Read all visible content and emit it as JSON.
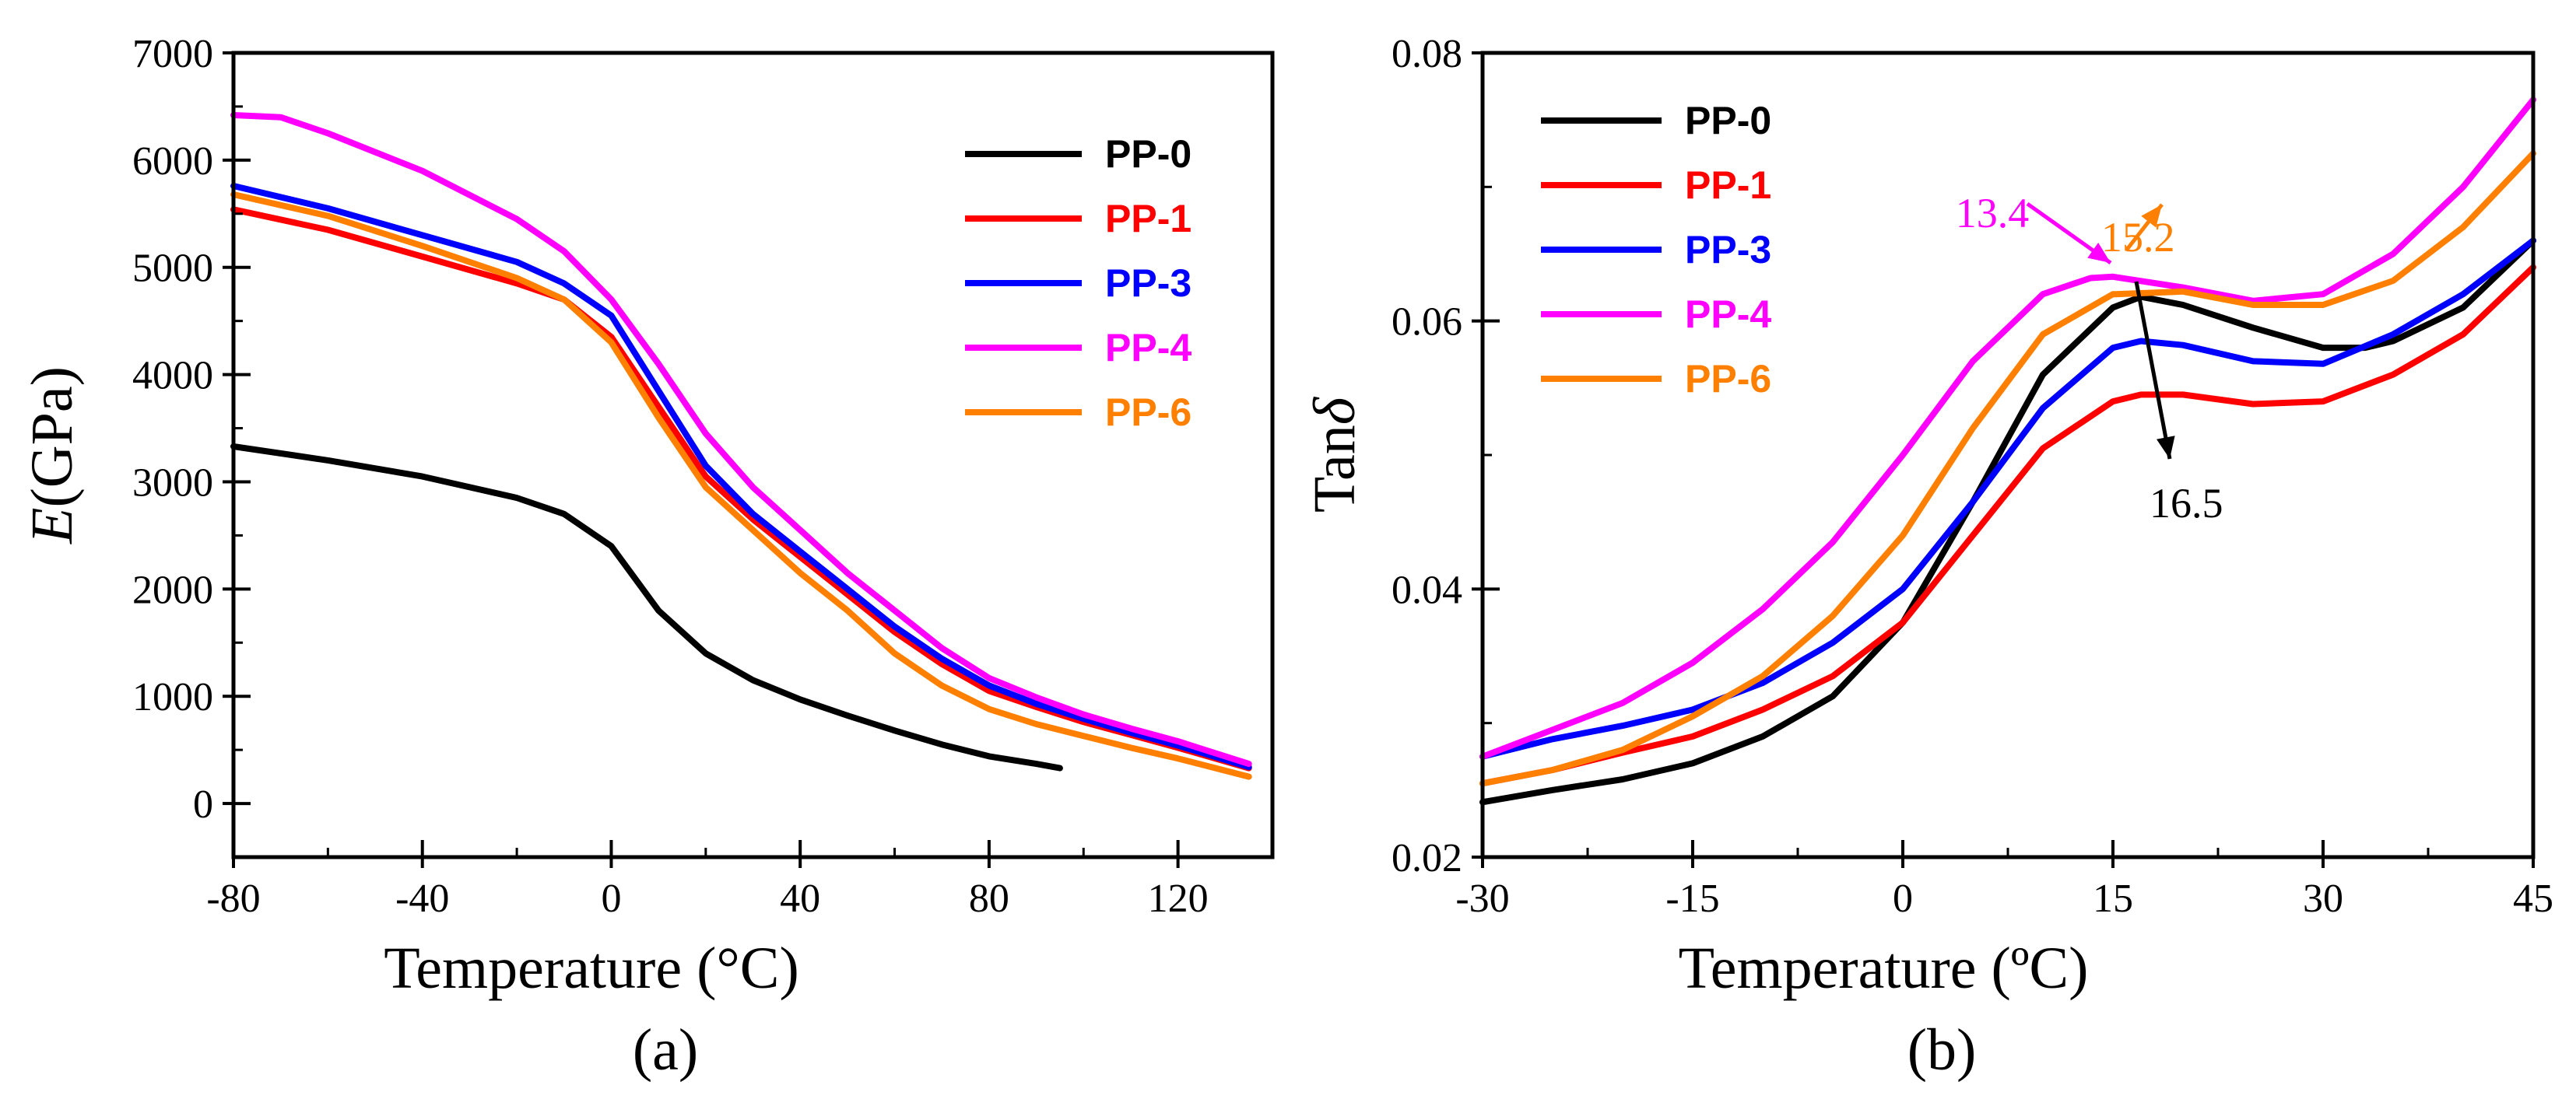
{
  "chart_data": [
    {
      "type": "line",
      "panel_label": "(a)",
      "xlabel": "Temperature (°C)",
      "ylabel_italic": "E",
      "ylabel_unit": "(GPa)",
      "xlim": [
        -80,
        140
      ],
      "ylim": [
        -500,
        7000
      ],
      "xticks": [
        -80,
        -40,
        0,
        40,
        80,
        120
      ],
      "yticks": [
        0,
        1000,
        2000,
        3000,
        4000,
        5000,
        6000,
        7000
      ],
      "legend_position": "top-right",
      "grid": false,
      "series": [
        {
          "name": "PP-0",
          "color": "#000000",
          "x": [
            -80,
            -60,
            -40,
            -20,
            -10,
            0,
            5,
            10,
            20,
            30,
            40,
            50,
            60,
            70,
            80,
            90,
            95
          ],
          "y": [
            3330,
            3200,
            3050,
            2850,
            2700,
            2400,
            2100,
            1800,
            1400,
            1150,
            970,
            820,
            680,
            550,
            440,
            370,
            330
          ]
        },
        {
          "name": "PP-1",
          "color": "#ff0000",
          "x": [
            -80,
            -60,
            -40,
            -20,
            -10,
            0,
            10,
            20,
            30,
            40,
            50,
            60,
            70,
            80,
            90,
            100,
            110,
            120,
            135
          ],
          "y": [
            5540,
            5350,
            5100,
            4850,
            4700,
            4350,
            3700,
            3050,
            2650,
            2300,
            1950,
            1600,
            1300,
            1050,
            900,
            760,
            640,
            520,
            330
          ]
        },
        {
          "name": "PP-3",
          "color": "#0000ff",
          "x": [
            -80,
            -60,
            -40,
            -20,
            -10,
            0,
            10,
            20,
            30,
            40,
            50,
            60,
            70,
            80,
            90,
            100,
            110,
            120,
            135
          ],
          "y": [
            5760,
            5550,
            5300,
            5050,
            4850,
            4550,
            3850,
            3150,
            2700,
            2350,
            2000,
            1650,
            1350,
            1100,
            930,
            790,
            660,
            540,
            340
          ]
        },
        {
          "name": "PP-4",
          "color": "#ff00ff",
          "x": [
            -80,
            -70,
            -60,
            -40,
            -20,
            -10,
            0,
            10,
            20,
            30,
            40,
            50,
            60,
            70,
            80,
            90,
            100,
            110,
            120,
            135
          ],
          "y": [
            6420,
            6400,
            6250,
            5900,
            5450,
            5150,
            4700,
            4100,
            3450,
            2950,
            2550,
            2150,
            1800,
            1450,
            1170,
            990,
            830,
            700,
            580,
            370
          ]
        },
        {
          "name": "PP-6",
          "color": "#ff8000",
          "x": [
            -80,
            -60,
            -40,
            -20,
            -10,
            0,
            10,
            20,
            30,
            40,
            50,
            60,
            70,
            80,
            90,
            100,
            110,
            120,
            135
          ],
          "y": [
            5680,
            5480,
            5200,
            4900,
            4700,
            4300,
            3600,
            2950,
            2550,
            2150,
            1800,
            1400,
            1100,
            880,
            740,
            630,
            520,
            420,
            250
          ]
        }
      ]
    },
    {
      "type": "line",
      "panel_label": "(b)",
      "xlabel": "Temperature (ºC)",
      "ylabel_text": "Tan",
      "ylabel_symbol": "δ",
      "xlim": [
        -30,
        45
      ],
      "ylim": [
        0.02,
        0.08
      ],
      "xticks": [
        -30,
        -15,
        0,
        15,
        30,
        45
      ],
      "yticks": [
        "0.02",
        "0.04",
        "0.06",
        "0.08"
      ],
      "legend_position": "top-left",
      "grid": false,
      "series": [
        {
          "name": "PP-0",
          "color": "#000000",
          "x": [
            -30,
            -25,
            -20,
            -15,
            -10,
            -5,
            0,
            5,
            10,
            15,
            17,
            20,
            25,
            30,
            33,
            35,
            40,
            45
          ],
          "y": [
            0.0241,
            0.025,
            0.0258,
            0.027,
            0.029,
            0.032,
            0.0375,
            0.0465,
            0.056,
            0.061,
            0.0618,
            0.0612,
            0.0595,
            0.058,
            0.058,
            0.0585,
            0.061,
            0.066
          ]
        },
        {
          "name": "PP-1",
          "color": "#ff0000",
          "x": [
            -30,
            -25,
            -20,
            -15,
            -10,
            -5,
            0,
            5,
            10,
            15,
            17,
            20,
            25,
            30,
            35,
            40,
            45
          ],
          "y": [
            0.0255,
            0.0265,
            0.0278,
            0.029,
            0.031,
            0.0335,
            0.0375,
            0.044,
            0.0505,
            0.054,
            0.0545,
            0.0545,
            0.0538,
            0.054,
            0.056,
            0.059,
            0.064
          ]
        },
        {
          "name": "PP-3",
          "color": "#0000ff",
          "x": [
            -30,
            -25,
            -20,
            -15,
            -10,
            -5,
            0,
            5,
            10,
            15,
            17,
            20,
            25,
            30,
            35,
            40,
            45
          ],
          "y": [
            0.0275,
            0.0288,
            0.0298,
            0.031,
            0.033,
            0.036,
            0.04,
            0.0465,
            0.0535,
            0.058,
            0.0585,
            0.0582,
            0.057,
            0.0568,
            0.059,
            0.062,
            0.066
          ]
        },
        {
          "name": "PP-4",
          "color": "#ff00ff",
          "x": [
            -30,
            -25,
            -20,
            -15,
            -10,
            -5,
            0,
            5,
            10,
            13.4,
            15,
            20,
            25,
            30,
            35,
            40,
            45
          ],
          "y": [
            0.0275,
            0.0295,
            0.0315,
            0.0345,
            0.0385,
            0.0435,
            0.05,
            0.057,
            0.062,
            0.0632,
            0.0633,
            0.0625,
            0.0615,
            0.062,
            0.065,
            0.07,
            0.0765
          ]
        },
        {
          "name": "PP-6",
          "color": "#ff8000",
          "x": [
            -30,
            -25,
            -20,
            -15,
            -10,
            -5,
            0,
            5,
            10,
            15,
            15.2,
            20,
            25,
            30,
            35,
            40,
            45
          ],
          "y": [
            0.0255,
            0.0265,
            0.028,
            0.0305,
            0.0335,
            0.038,
            0.044,
            0.052,
            0.059,
            0.062,
            0.062,
            0.0622,
            0.0612,
            0.0612,
            0.063,
            0.067,
            0.0725
          ]
        }
      ],
      "annotations": [
        {
          "text": "13.4",
          "color": "#ff00ff",
          "x": 13.4,
          "y": 0.0633
        },
        {
          "text": "15.2",
          "color": "#ff8000",
          "x": 15.2,
          "y": 0.062
        },
        {
          "text": "16.5",
          "color": "#000000",
          "x": 16.5,
          "y": 0.0618
        }
      ]
    }
  ]
}
